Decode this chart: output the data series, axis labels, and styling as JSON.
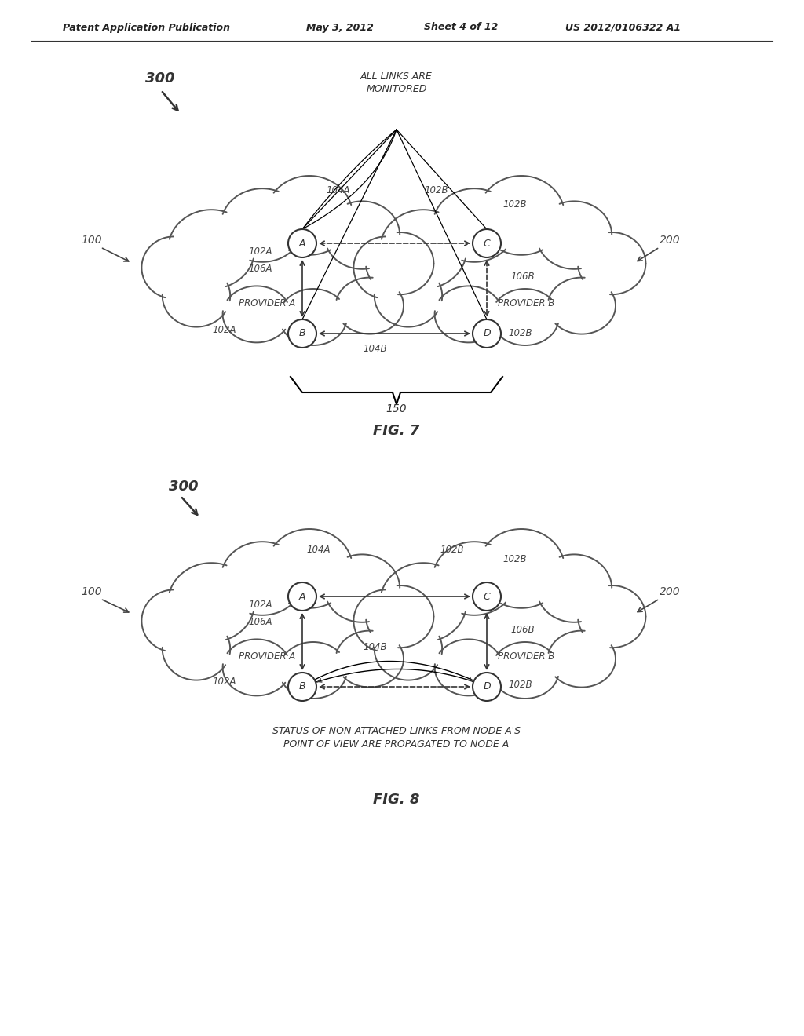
{
  "bg_color": "#ffffff",
  "header_text": "Patent Application Publication",
  "header_date": "May 3, 2012",
  "header_sheet": "Sheet 4 of 12",
  "header_patent": "US 2012/0106322 A1"
}
